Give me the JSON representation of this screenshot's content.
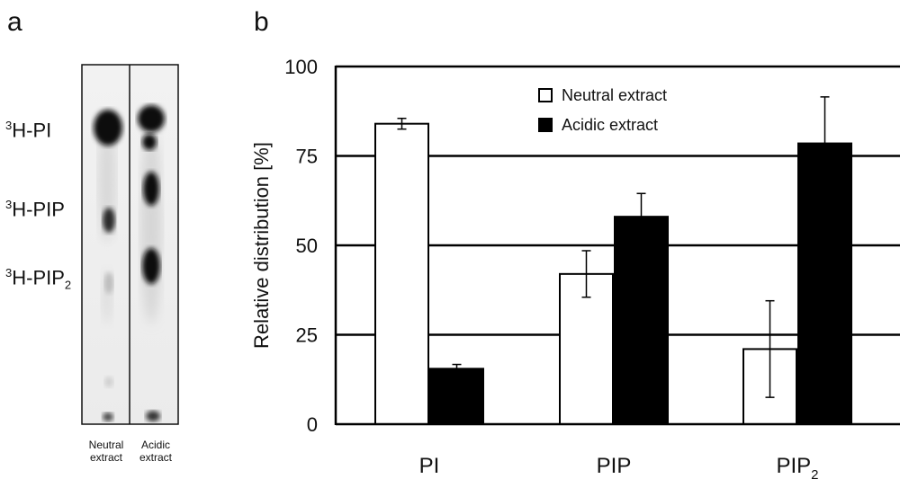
{
  "panels": {
    "a": "a",
    "b": "b"
  },
  "tlc": {
    "spot_labels": [
      {
        "prefix": "3",
        "base": "H-PI",
        "sub": ""
      },
      {
        "prefix": "3",
        "base": "H-PIP",
        "sub": ""
      },
      {
        "prefix": "3",
        "base": "H-PIP",
        "sub": "2"
      }
    ],
    "lanes": [
      {
        "line1": "Neutral",
        "line2": "extract"
      },
      {
        "line1": "Acidic",
        "line2": "extract"
      }
    ]
  },
  "chart_data": {
    "type": "bar",
    "categories": [
      {
        "base": "PI",
        "sub": ""
      },
      {
        "base": "PIP",
        "sub": ""
      },
      {
        "base": "PIP",
        "sub": "2"
      }
    ],
    "series": [
      {
        "name": "Neutral extract",
        "fill": "#ffffff",
        "values": [
          84,
          42,
          21
        ],
        "errors": [
          1.5,
          6.5,
          13.5
        ]
      },
      {
        "name": "Acidic extract",
        "fill": "#000000",
        "values": [
          15.5,
          58,
          78.5
        ],
        "errors": [
          1.2,
          6.5,
          13
        ]
      }
    ],
    "ylabel": "Relative distribution [%]",
    "ylim": [
      0,
      100
    ],
    "yticks": [
      0,
      25,
      50,
      75,
      100
    ],
    "gridlines": true,
    "legend_position": "top-center"
  }
}
